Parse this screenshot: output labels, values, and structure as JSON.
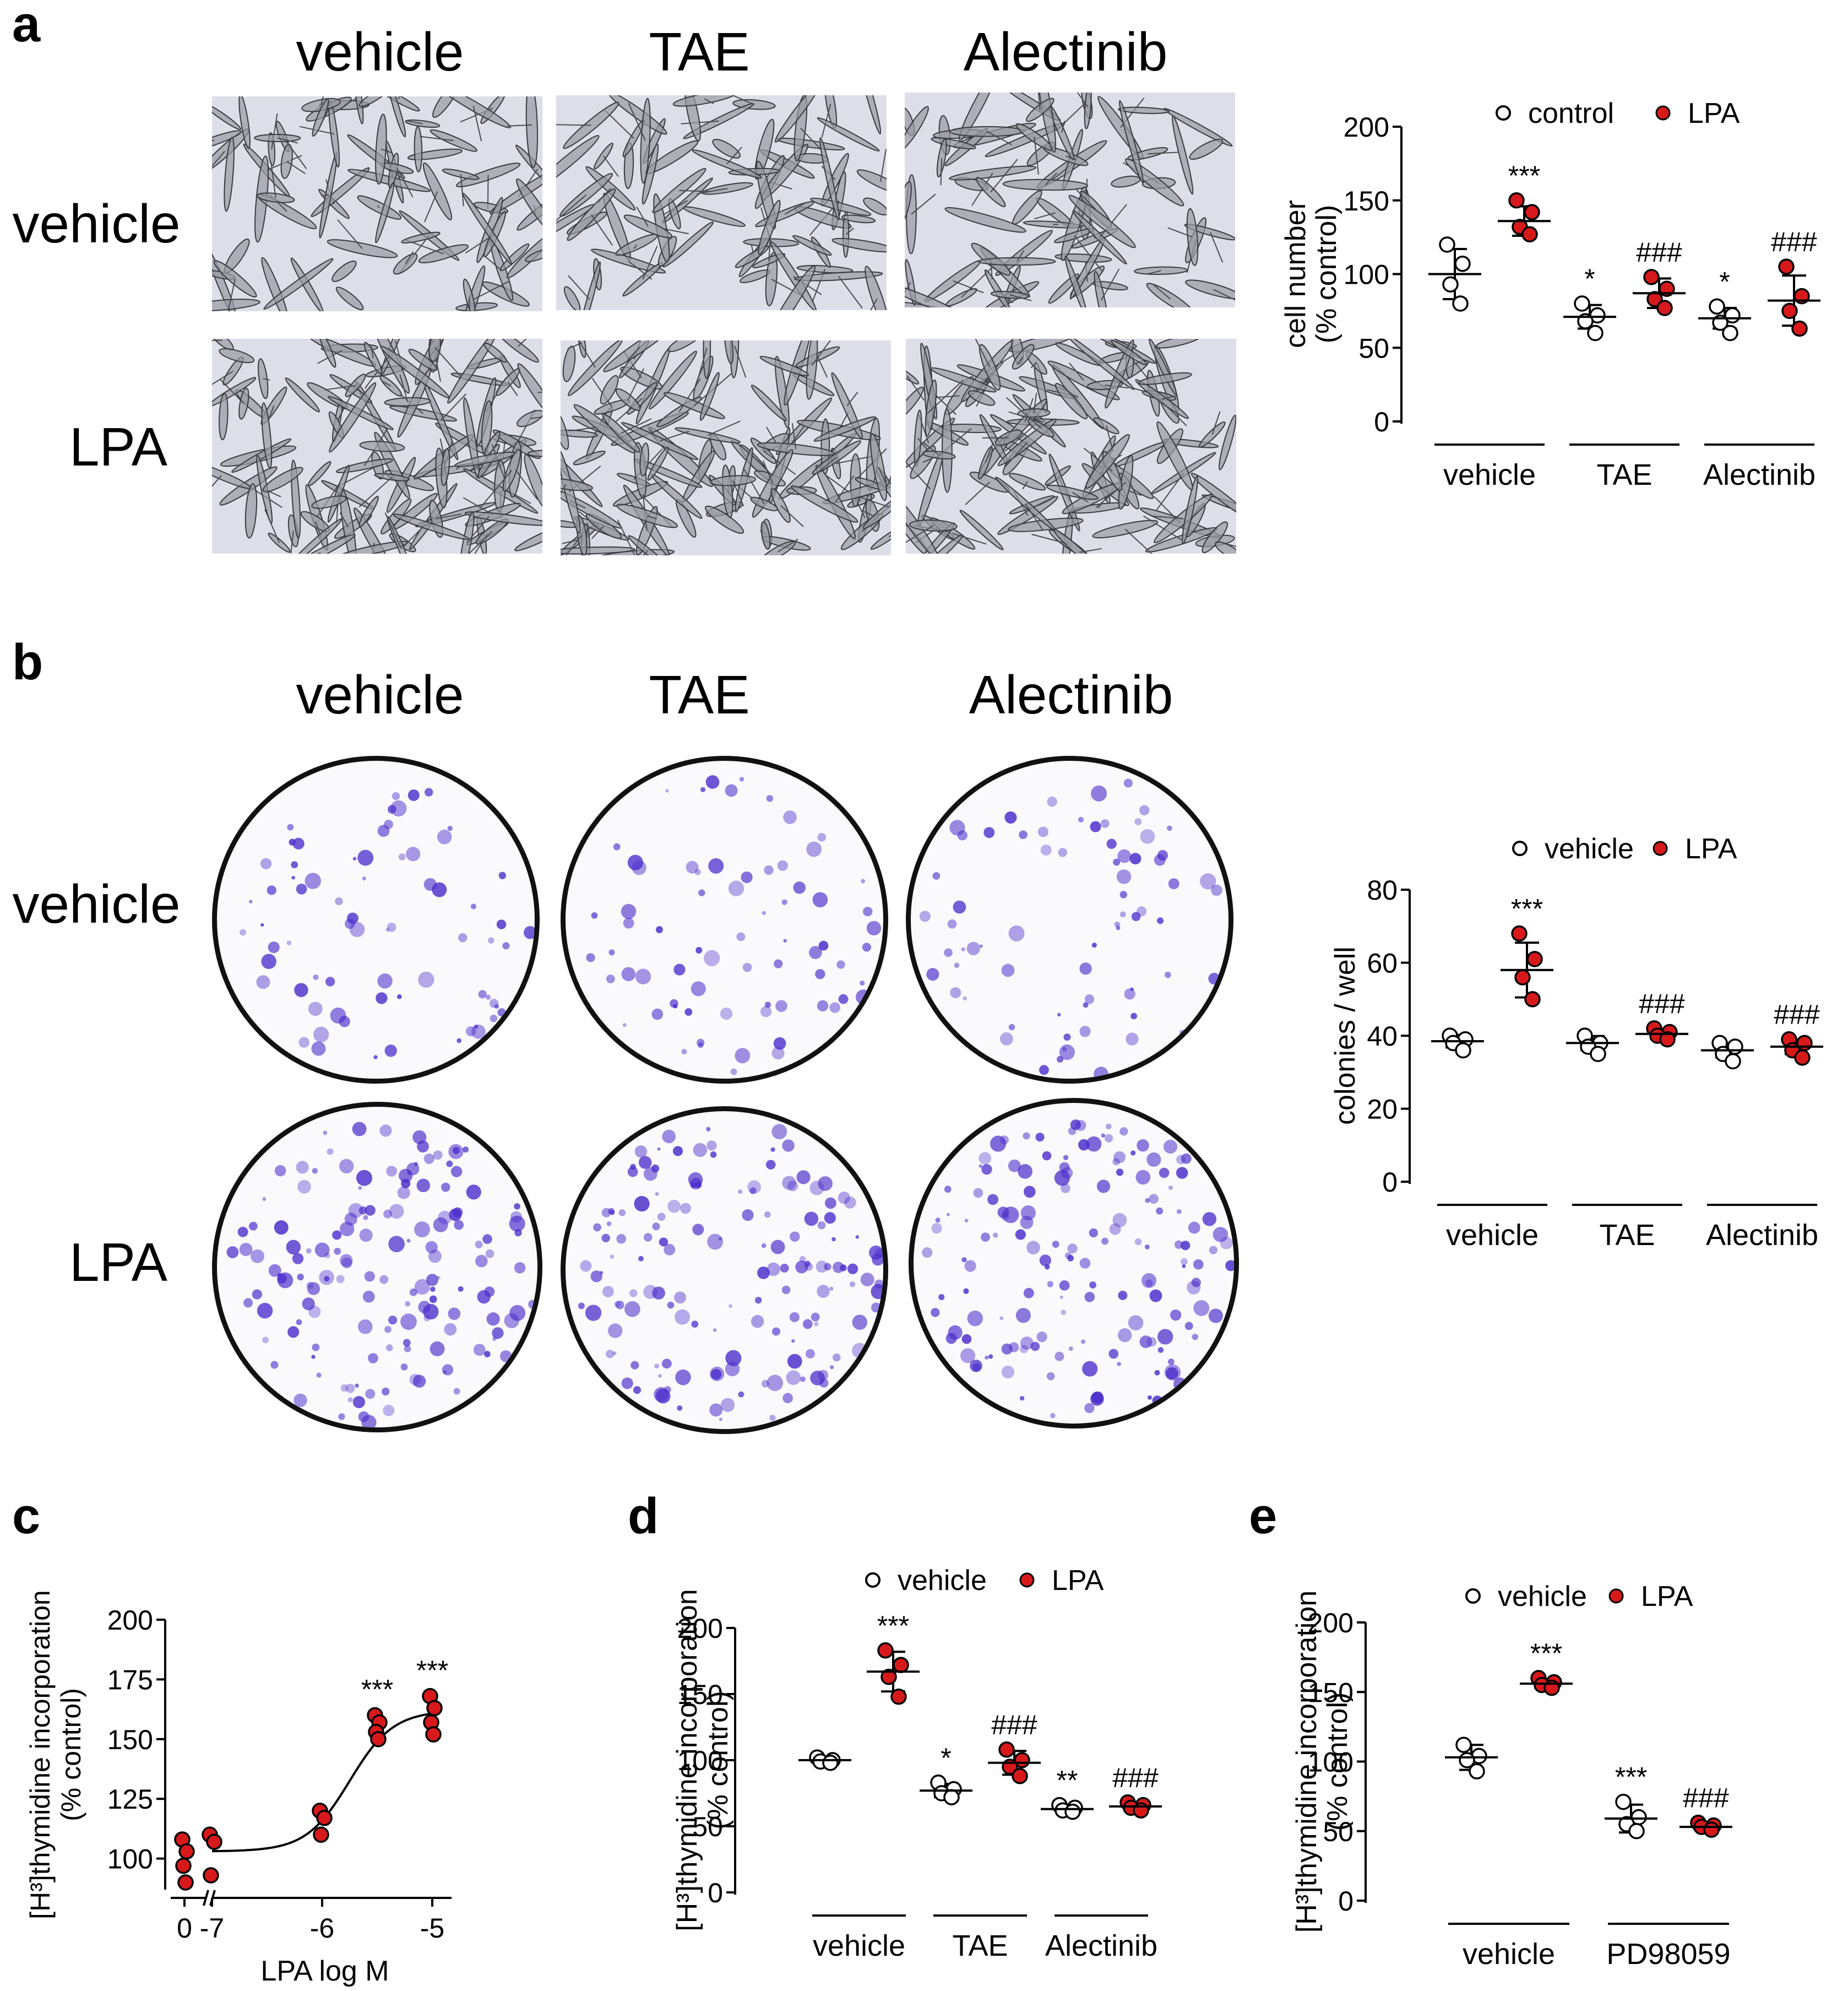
{
  "panels": {
    "a": {
      "label": "a",
      "col_titles": [
        "vehicle",
        "TAE",
        "Alectinib"
      ],
      "row_titles": [
        "vehicle",
        "LPA"
      ],
      "image_description": "micrographs of cells"
    },
    "b": {
      "label": "b",
      "col_titles": [
        "vehicle",
        "TAE",
        "Alectinib"
      ],
      "row_titles": [
        "vehicle",
        "LPA"
      ]
    },
    "c": {
      "label": "c"
    },
    "d": {
      "label": "d"
    },
    "e": {
      "label": "e"
    }
  },
  "colors": {
    "lpa_fill": "#d7191c",
    "control_fill": "#ffffff",
    "stroke": "#000000",
    "stain": "#4b2ecb"
  },
  "chart_data": [
    {
      "id": "a",
      "type": "scatter",
      "ylabel": [
        "cell number",
        "(% control)"
      ],
      "ylim": [
        0,
        200
      ],
      "yticks": [
        0,
        50,
        100,
        150,
        200
      ],
      "groups": [
        "vehicle",
        "TAE",
        "Alectinib"
      ],
      "legend": [
        "control",
        "LPA"
      ],
      "series": [
        {
          "name": "control",
          "group": "vehicle",
          "values": [
            120,
            107,
            93,
            80
          ],
          "mean": 100,
          "sd": 17,
          "sig": ""
        },
        {
          "name": "LPA",
          "group": "vehicle",
          "values": [
            150,
            142,
            132,
            127
          ],
          "mean": 136,
          "sd": 10,
          "sig": "***"
        },
        {
          "name": "control",
          "group": "TAE",
          "values": [
            80,
            72,
            68,
            60
          ],
          "mean": 71,
          "sd": 8,
          "sig": "*"
        },
        {
          "name": "LPA",
          "group": "TAE",
          "values": [
            98,
            90,
            83,
            77
          ],
          "mean": 87,
          "sd": 10,
          "sig": "###"
        },
        {
          "name": "control",
          "group": "Alectinib",
          "values": [
            78,
            72,
            67,
            60
          ],
          "mean": 70,
          "sd": 7,
          "sig": "*"
        },
        {
          "name": "LPA",
          "group": "Alectinib",
          "values": [
            105,
            85,
            75,
            63
          ],
          "mean": 82,
          "sd": 17,
          "sig": "###"
        }
      ]
    },
    {
      "id": "b",
      "type": "scatter",
      "ylabel": [
        "colonies / well"
      ],
      "ylim": [
        0,
        80
      ],
      "yticks": [
        0,
        20,
        40,
        60,
        80
      ],
      "groups": [
        "vehicle",
        "TAE",
        "Alectinib"
      ],
      "legend": [
        "vehicle",
        "LPA"
      ],
      "series": [
        {
          "name": "vehicle",
          "group": "vehicle",
          "values": [
            40,
            39,
            38,
            36
          ],
          "mean": 38.5,
          "sd": 1.7,
          "sig": ""
        },
        {
          "name": "LPA",
          "group": "vehicle",
          "values": [
            68,
            61,
            56,
            50
          ],
          "mean": 58,
          "sd": 7.5,
          "sig": "***"
        },
        {
          "name": "vehicle",
          "group": "TAE",
          "values": [
            40,
            38,
            37,
            35
          ],
          "mean": 38,
          "sd": 1.9,
          "sig": ""
        },
        {
          "name": "LPA",
          "group": "TAE",
          "values": [
            42,
            41,
            40,
            39
          ],
          "mean": 40.5,
          "sd": 1.3,
          "sig": "###"
        },
        {
          "name": "vehicle",
          "group": "Alectinib",
          "values": [
            38,
            37,
            35,
            33
          ],
          "mean": 36,
          "sd": 1.9,
          "sig": ""
        },
        {
          "name": "LPA",
          "group": "Alectinib",
          "values": [
            39,
            38,
            36,
            34
          ],
          "mean": 37,
          "sd": 2,
          "sig": "###"
        }
      ]
    },
    {
      "id": "c",
      "type": "line",
      "ylabel": [
        "[H³]thymidine  incorporation",
        "(% control)"
      ],
      "xlabel": "LPA log M",
      "ylim": [
        87,
        200
      ],
      "yticks": [
        100,
        125,
        150,
        175,
        200
      ],
      "xticks": [
        "0",
        "-7",
        "-6",
        "-5"
      ],
      "points": [
        {
          "x": "0",
          "values": [
            108,
            103,
            97,
            90
          ]
        },
        {
          "x": -7,
          "values": [
            110,
            107,
            93
          ]
        },
        {
          "x": -6,
          "values": [
            120,
            117,
            110
          ]
        },
        {
          "x": -5.5,
          "values": [
            160,
            157,
            153,
            150
          ],
          "sig": "***"
        },
        {
          "x": -5,
          "values": [
            168,
            163,
            157,
            152
          ],
          "sig": "***"
        }
      ],
      "fit": {
        "bottom": 103,
        "top": 162,
        "logEC50": -5.75,
        "hill": 2.2
      }
    },
    {
      "id": "d",
      "type": "scatter",
      "ylabel": [
        "[H³]thymidine  incorporation",
        "(% control)"
      ],
      "ylim": [
        0,
        200
      ],
      "yticks": [
        0,
        50,
        100,
        150,
        200
      ],
      "groups": [
        "vehicle",
        "TAE",
        "Alectinib"
      ],
      "legend": [
        "vehicle",
        "LPA"
      ],
      "series": [
        {
          "name": "vehicle",
          "group": "vehicle",
          "values": [
            102,
            100,
            99,
            98
          ],
          "mean": 100,
          "sd": 2,
          "sig": ""
        },
        {
          "name": "LPA",
          "group": "vehicle",
          "values": [
            183,
            172,
            163,
            148
          ],
          "mean": 167,
          "sd": 15,
          "sig": "***"
        },
        {
          "name": "vehicle",
          "group": "TAE",
          "values": [
            83,
            78,
            75,
            72
          ],
          "mean": 77,
          "sd": 5,
          "sig": "*"
        },
        {
          "name": "LPA",
          "group": "TAE",
          "values": [
            108,
            100,
            95,
            88
          ],
          "mean": 98,
          "sd": 9,
          "sig": "###"
        },
        {
          "name": "vehicle",
          "group": "Alectinib",
          "values": [
            66,
            64,
            62,
            61
          ],
          "mean": 63,
          "sd": 2,
          "sig": "**"
        },
        {
          "name": "LPA",
          "group": "Alectinib",
          "values": [
            68,
            66,
            64,
            62
          ],
          "mean": 65,
          "sd": 3,
          "sig": "###"
        }
      ]
    },
    {
      "id": "e",
      "type": "scatter",
      "ylabel": [
        "[H³]thymidine  incorporation",
        "(% control)"
      ],
      "ylim": [
        0,
        200
      ],
      "yticks": [
        0,
        50,
        100,
        150,
        200
      ],
      "groups": [
        "vehicle",
        "PD98059"
      ],
      "legend": [
        "vehicle",
        "LPA"
      ],
      "series": [
        {
          "name": "vehicle",
          "group": "vehicle",
          "values": [
            112,
            104,
            101,
            93
          ],
          "mean": 103,
          "sd": 9,
          "sig": ""
        },
        {
          "name": "LPA",
          "group": "vehicle",
          "values": [
            160,
            157,
            155,
            153
          ],
          "mean": 156,
          "sd": 3,
          "sig": "***"
        },
        {
          "name": "vehicle",
          "group": "PD98059",
          "values": [
            71,
            60,
            55,
            50
          ],
          "mean": 59,
          "sd": 10,
          "sig": "***"
        },
        {
          "name": "LPA",
          "group": "PD98059",
          "values": [
            56,
            54,
            53,
            51
          ],
          "mean": 53,
          "sd": 2,
          "sig": "###"
        }
      ]
    }
  ]
}
